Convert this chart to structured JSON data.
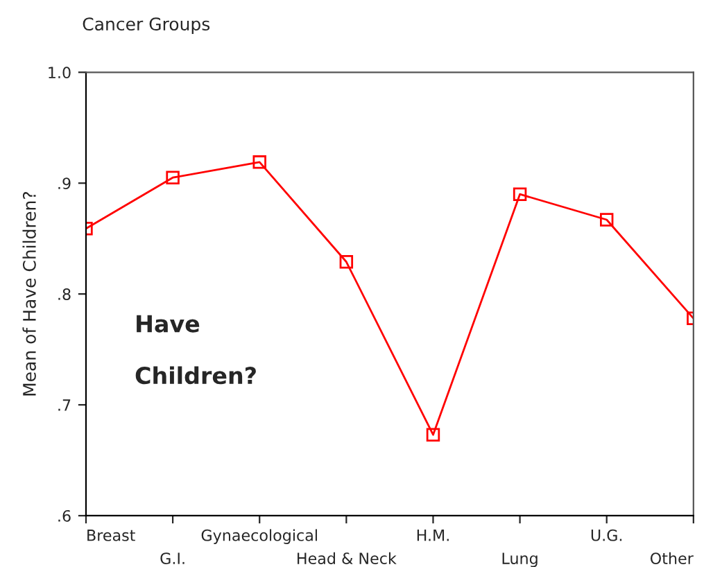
{
  "chart_data": {
    "type": "line",
    "title": "Cancer Groups",
    "ylabel": "Mean of Have Children?",
    "categories": [
      "Breast",
      "G.I.",
      "Gynaecological",
      "Head & Neck",
      "H.M.",
      "Lung",
      "U.G.",
      "Other"
    ],
    "series": [
      {
        "color": "#ff0000",
        "values": [
          0.859,
          0.905,
          0.919,
          0.829,
          0.673,
          0.89,
          0.867,
          0.778
        ]
      }
    ],
    "ylim": [
      0.6,
      1.0
    ],
    "yticks": [
      {
        "value": 0.6,
        "label": ".6"
      },
      {
        "value": 0.7,
        "label": ".7"
      },
      {
        "value": 0.8,
        "label": ".8"
      },
      {
        "value": 0.9,
        "label": ".9"
      },
      {
        "value": 1.0,
        "label": "1.0"
      }
    ],
    "annotations": [
      "Have\n\nChildren?"
    ],
    "marker": "square",
    "line_style": "solid",
    "grid": false,
    "legend": false
  }
}
